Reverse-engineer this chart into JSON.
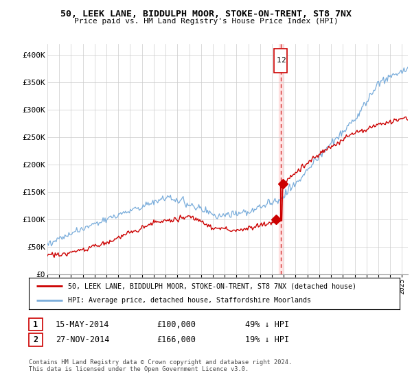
{
  "title1": "50, LEEK LANE, BIDDULPH MOOR, STOKE-ON-TRENT, ST8 7NX",
  "title2": "Price paid vs. HM Land Registry's House Price Index (HPI)",
  "xlim_start": 1995.0,
  "xlim_end": 2025.5,
  "ylim": [
    0,
    420000
  ],
  "yticks": [
    0,
    50000,
    100000,
    150000,
    200000,
    250000,
    300000,
    350000,
    400000
  ],
  "ytick_labels": [
    "£0",
    "£50K",
    "£100K",
    "£150K",
    "£200K",
    "£250K",
    "£300K",
    "£350K",
    "£400K"
  ],
  "vline_x": 2014.75,
  "marker1_x": 2014.37,
  "marker1_y": 100000,
  "marker2_x": 2014.9,
  "marker2_y": 166000,
  "legend_line1": "50, LEEK LANE, BIDDULPH MOOR, STOKE-ON-TRENT, ST8 7NX (detached house)",
  "legend_line2": "HPI: Average price, detached house, Staffordshire Moorlands",
  "table_row1": [
    "1",
    "15-MAY-2014",
    "£100,000",
    "49% ↓ HPI"
  ],
  "table_row2": [
    "2",
    "27-NOV-2014",
    "£166,000",
    "19% ↓ HPI"
  ],
  "footer": "Contains HM Land Registry data © Crown copyright and database right 2024.\nThis data is licensed under the Open Government Licence v3.0.",
  "line_color_red": "#cc0000",
  "line_color_blue": "#7aaddb",
  "vline_color": "#cc0000",
  "marker_color": "#cc0000",
  "bg_color": "#ffffff",
  "grid_color": "#cccccc"
}
